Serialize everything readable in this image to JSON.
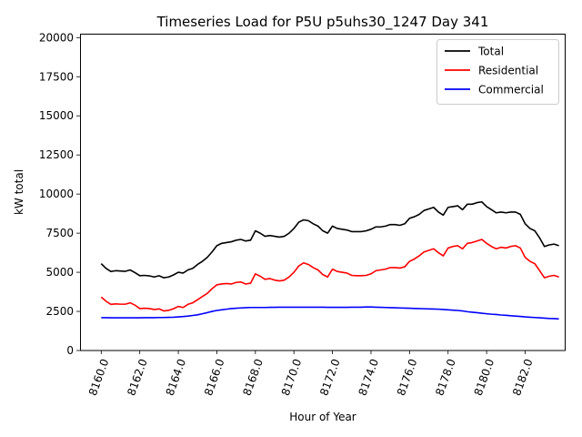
{
  "chart_data": {
    "type": "line",
    "title": "Timeseries Load for P5U p5uhs30_1247  Day 341",
    "xlabel": "Hour of Year",
    "ylabel": "kW total",
    "xlim": [
      8158.9,
      8184.1
    ],
    "ylim": [
      0,
      20250
    ],
    "xticks": [
      8160,
      8162,
      8164,
      8166,
      8168,
      8170,
      8172,
      8174,
      8176,
      8178,
      8180,
      8182
    ],
    "xtick_labels": [
      "8160.0",
      "8162.0",
      "8164.0",
      "8166.0",
      "8168.0",
      "8170.0",
      "8172.0",
      "8174.0",
      "8176.0",
      "8178.0",
      "8180.0",
      "8182.0"
    ],
    "yticks": [
      0,
      2500,
      5000,
      7500,
      10000,
      12500,
      15000,
      17500,
      20000
    ],
    "ytick_labels": [
      "0",
      "2500",
      "5000",
      "7500",
      "10000",
      "12500",
      "15000",
      "17500",
      "20000"
    ],
    "grid": false,
    "legend_position": "top-right",
    "x": [
      8160.0,
      8160.25,
      8160.5,
      8160.75,
      8161.0,
      8161.25,
      8161.5,
      8161.75,
      8162.0,
      8162.25,
      8162.5,
      8162.75,
      8163.0,
      8163.25,
      8163.5,
      8163.75,
      8164.0,
      8164.25,
      8164.5,
      8164.75,
      8165.0,
      8165.25,
      8165.5,
      8165.75,
      8166.0,
      8166.25,
      8166.5,
      8166.75,
      8167.0,
      8167.25,
      8167.5,
      8167.75,
      8168.0,
      8168.25,
      8168.5,
      8168.75,
      8169.0,
      8169.25,
      8169.5,
      8169.75,
      8170.0,
      8170.25,
      8170.5,
      8170.75,
      8171.0,
      8171.25,
      8171.5,
      8171.75,
      8172.0,
      8172.25,
      8172.5,
      8172.75,
      8173.0,
      8173.25,
      8173.5,
      8173.75,
      8174.0,
      8174.25,
      8174.5,
      8174.75,
      8175.0,
      8175.25,
      8175.5,
      8175.75,
      8176.0,
      8176.25,
      8176.5,
      8176.75,
      8177.0,
      8177.25,
      8177.5,
      8177.75,
      8178.0,
      8178.25,
      8178.5,
      8178.75,
      8179.0,
      8179.25,
      8179.5,
      8179.75,
      8180.0,
      8180.25,
      8180.5,
      8180.75,
      8181.0,
      8181.25,
      8181.5,
      8181.75,
      8182.0,
      8182.25,
      8182.5,
      8182.75,
      8183.0,
      8183.25,
      8183.5,
      8183.75
    ],
    "series": [
      {
        "name": "Total",
        "color": "#000000",
        "values": [
          5550,
          5250,
          5050,
          5100,
          5080,
          5060,
          5150,
          4980,
          4780,
          4800,
          4770,
          4700,
          4780,
          4650,
          4700,
          4830,
          5000,
          4950,
          5150,
          5250,
          5500,
          5700,
          5950,
          6300,
          6700,
          6850,
          6900,
          6950,
          7050,
          7100,
          7000,
          7050,
          7650,
          7500,
          7300,
          7350,
          7300,
          7250,
          7300,
          7500,
          7800,
          8200,
          8350,
          8300,
          8100,
          7950,
          7650,
          7500,
          7950,
          7800,
          7750,
          7700,
          7600,
          7600,
          7600,
          7650,
          7750,
          7900,
          7900,
          7950,
          8050,
          8050,
          8000,
          8100,
          8450,
          8550,
          8700,
          8950,
          9050,
          9150,
          8850,
          8650,
          9150,
          9200,
          9250,
          9000,
          9350,
          9350,
          9450,
          9500,
          9200,
          9000,
          8800,
          8850,
          8800,
          8850,
          8850,
          8700,
          8100,
          7800,
          7650,
          7200,
          6650,
          6750,
          6800,
          6700
        ]
      },
      {
        "name": "Residential",
        "color": "#ff0000",
        "values": [
          3420,
          3150,
          2950,
          2980,
          2960,
          2960,
          3050,
          2900,
          2680,
          2700,
          2680,
          2620,
          2660,
          2530,
          2570,
          2670,
          2820,
          2750,
          2950,
          3050,
          3250,
          3450,
          3650,
          3950,
          4200,
          4250,
          4280,
          4250,
          4350,
          4380,
          4250,
          4300,
          4900,
          4750,
          4550,
          4600,
          4500,
          4450,
          4500,
          4700,
          5000,
          5400,
          5600,
          5500,
          5300,
          5150,
          4850,
          4700,
          5200,
          5050,
          5000,
          4950,
          4800,
          4780,
          4780,
          4800,
          4900,
          5100,
          5150,
          5200,
          5300,
          5300,
          5270,
          5350,
          5700,
          5850,
          6050,
          6300,
          6400,
          6500,
          6250,
          6050,
          6550,
          6650,
          6700,
          6500,
          6850,
          6900,
          7000,
          7100,
          6850,
          6650,
          6500,
          6600,
          6550,
          6650,
          6700,
          6550,
          5950,
          5700,
          5550,
          5100,
          4650,
          4750,
          4800,
          4700
        ]
      },
      {
        "name": "Commercial",
        "color": "#0000ff",
        "values": [
          2100,
          2100,
          2090,
          2090,
          2090,
          2090,
          2090,
          2090,
          2090,
          2100,
          2100,
          2100,
          2110,
          2110,
          2120,
          2130,
          2150,
          2170,
          2200,
          2240,
          2280,
          2350,
          2420,
          2500,
          2560,
          2600,
          2640,
          2680,
          2700,
          2720,
          2740,
          2750,
          2750,
          2750,
          2750,
          2760,
          2760,
          2770,
          2770,
          2770,
          2770,
          2770,
          2770,
          2770,
          2770,
          2770,
          2770,
          2760,
          2760,
          2760,
          2760,
          2760,
          2770,
          2770,
          2770,
          2780,
          2780,
          2770,
          2760,
          2750,
          2740,
          2730,
          2720,
          2710,
          2700,
          2690,
          2680,
          2670,
          2660,
          2650,
          2640,
          2620,
          2600,
          2580,
          2560,
          2530,
          2480,
          2450,
          2420,
          2380,
          2350,
          2320,
          2300,
          2270,
          2250,
          2220,
          2200,
          2180,
          2150,
          2130,
          2110,
          2090,
          2070,
          2050,
          2040,
          2020
        ]
      }
    ]
  }
}
